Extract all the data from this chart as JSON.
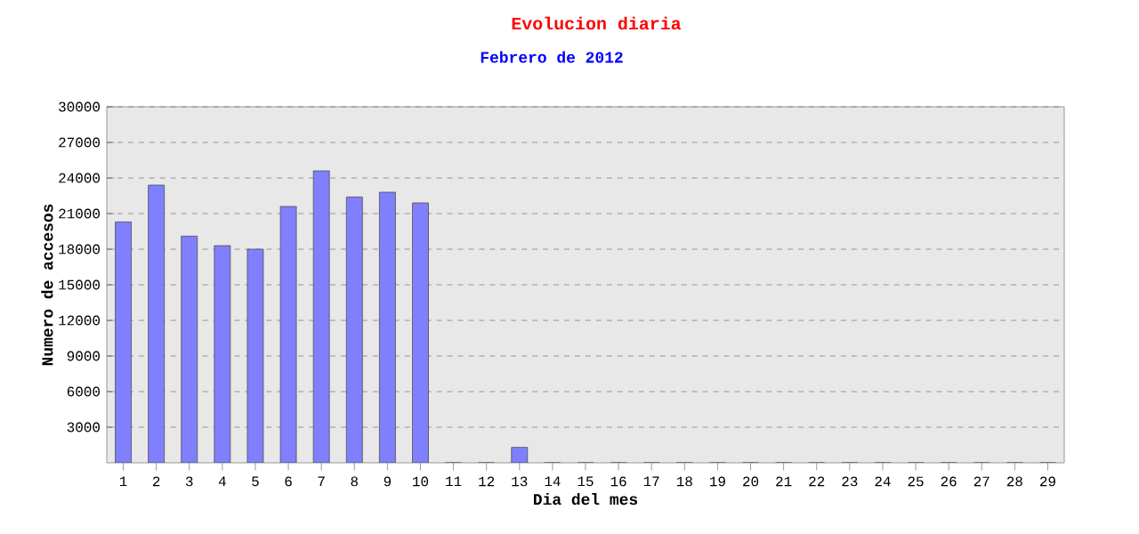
{
  "chart_data": {
    "type": "bar",
    "title": "Evolucion diaria",
    "subtitle": "Febrero de 2012",
    "xlabel": "Dia del mes",
    "ylabel": "Numero de accesos",
    "categories": [
      "1",
      "2",
      "3",
      "4",
      "5",
      "6",
      "7",
      "8",
      "9",
      "10",
      "11",
      "12",
      "13",
      "14",
      "15",
      "16",
      "17",
      "18",
      "19",
      "20",
      "21",
      "22",
      "23",
      "24",
      "25",
      "26",
      "27",
      "28",
      "29"
    ],
    "values": [
      20300,
      23400,
      19100,
      18300,
      18000,
      21600,
      24600,
      22400,
      22800,
      21900,
      0,
      0,
      1300,
      0,
      0,
      0,
      0,
      0,
      0,
      0,
      0,
      0,
      0,
      0,
      0,
      0,
      0,
      0,
      0
    ],
    "color": "#8080ff",
    "ylim": [
      0,
      30000
    ],
    "yticks": [
      3000,
      6000,
      9000,
      12000,
      15000,
      18000,
      21000,
      24000,
      27000,
      30000
    ],
    "grid": "y"
  }
}
